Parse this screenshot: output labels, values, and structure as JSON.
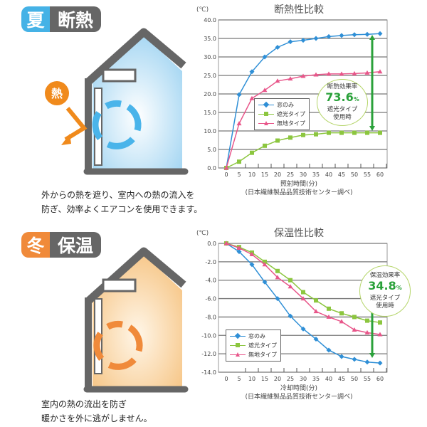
{
  "summer": {
    "season": "夏",
    "label": "断熱",
    "heat_label": "熱",
    "description": [
      "外からの熱を遮り、室内への熱の流入を",
      "防ぎ、効率よくエアコンを使用できます。"
    ],
    "season_color": "#45b2e6"
  },
  "winter": {
    "season": "冬",
    "label": "保温",
    "description": [
      "室内の熱の流出を防ぎ",
      "暖かさを外に逃がしません。"
    ],
    "season_color": "#f08a3a"
  },
  "chart_data": [
    {
      "type": "line",
      "title": "断熱性比較",
      "unit_label": "(℃)",
      "xlabel": "照射時間(分)",
      "source": "(日本繊維製品品質技術センター調べ)",
      "x": [
        0,
        5,
        10,
        15,
        20,
        25,
        30,
        35,
        40,
        45,
        50,
        55,
        60
      ],
      "ylim": [
        0,
        40
      ],
      "yticks": [
        "0.0",
        "5.0",
        "10.0",
        "15.0",
        "20.0",
        "25.0",
        "30.0",
        "35.0",
        "40.0"
      ],
      "grid": true,
      "legend": "center-left",
      "series": [
        {
          "name": "窓のみ",
          "color": "#2f8fd6",
          "marker": "diamond",
          "values": [
            0,
            19.8,
            26,
            30,
            32.6,
            34.1,
            34.5,
            35,
            35.5,
            35.8,
            36,
            36.1,
            36.3
          ]
        },
        {
          "name": "遮光タイプ",
          "color": "#8cc63f",
          "marker": "square",
          "values": [
            0,
            1.7,
            4.1,
            6,
            7.4,
            8.2,
            8.9,
            9.1,
            9.5,
            9.5,
            9.5,
            9.5,
            9.5
          ]
        },
        {
          "name": "無地タイプ",
          "color": "#e8568a",
          "marker": "triangle",
          "values": [
            0,
            12,
            18.8,
            21,
            23.5,
            24.1,
            24.8,
            25.2,
            25.4,
            25.4,
            25.5,
            25.7,
            26
          ]
        }
      ],
      "callout": {
        "title": "断熱効果率",
        "value": "73.6",
        "unit": "%",
        "line1": "遮光タイプ",
        "line2": "使用時"
      }
    },
    {
      "type": "line",
      "title": "保温性比較",
      "unit_label": "(℃)",
      "xlabel": "冷却時間(分)",
      "source": "(日本繊維製品品質技術センター調べ)",
      "x": [
        0,
        5,
        10,
        15,
        20,
        25,
        30,
        35,
        40,
        45,
        50,
        55,
        60
      ],
      "ylim": [
        -14,
        0
      ],
      "yticks": [
        "-14.0",
        "-12.0",
        "-10.0",
        "-8.0",
        "-6.0",
        "-4.0",
        "-2.0",
        "0.0"
      ],
      "grid": true,
      "legend": "bottom-left",
      "series": [
        {
          "name": "窓のみ",
          "color": "#2f8fd6",
          "marker": "diamond",
          "values": [
            0,
            -0.9,
            -2.3,
            -4.2,
            -6,
            -7.9,
            -9.3,
            -10.4,
            -11.6,
            -12.3,
            -12.6,
            -12.9,
            -13
          ]
        },
        {
          "name": "遮光タイプ",
          "color": "#8cc63f",
          "marker": "square",
          "values": [
            0,
            -0.4,
            -1,
            -2,
            -3,
            -4,
            -5.3,
            -6.2,
            -7.1,
            -7.6,
            -8,
            -8.4,
            -8.6
          ]
        },
        {
          "name": "無地タイプ",
          "color": "#e8568a",
          "marker": "triangle",
          "values": [
            0,
            -0.5,
            -1.2,
            -2.3,
            -3.7,
            -4.7,
            -6,
            -7.4,
            -8,
            -8.5,
            -9.4,
            -9.7,
            -9.9
          ]
        }
      ],
      "callout": {
        "title": "保温効果率",
        "value": "34.8",
        "unit": "%",
        "line1": "遮光タイプ",
        "line2": "使用時"
      }
    }
  ]
}
